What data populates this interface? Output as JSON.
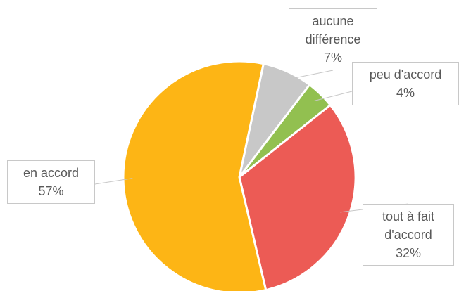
{
  "chart_data": {
    "type": "pie",
    "categories": [
      "aucune différence",
      "peu d'accord",
      "tout à fait d'accord",
      "en accord"
    ],
    "values": [
      7,
      4,
      32,
      57
    ],
    "value_labels": [
      "7%",
      "4%",
      "32%",
      "57%"
    ],
    "colors": [
      "#c8c8c8",
      "#92c050",
      "#ec5b55",
      "#fdb515"
    ]
  }
}
